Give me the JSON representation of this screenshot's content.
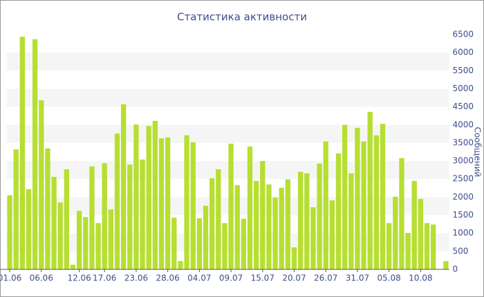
{
  "chart_data": {
    "type": "bar",
    "title": "Статистика активности",
    "y_axis_label": "Сообщений",
    "categories": [
      "01.06",
      null,
      null,
      null,
      null,
      "06.06",
      null,
      null,
      null,
      null,
      null,
      "12.06",
      null,
      null,
      null,
      "17.06",
      null,
      null,
      null,
      null,
      "23.06",
      null,
      null,
      null,
      null,
      "28.06",
      null,
      null,
      null,
      null,
      "04.07",
      null,
      null,
      null,
      null,
      "09.07",
      null,
      null,
      null,
      null,
      "15.07",
      null,
      null,
      null,
      null,
      "20.07",
      null,
      null,
      null,
      null,
      "26.07",
      null,
      null,
      null,
      null,
      "31.07",
      null,
      null,
      null,
      null,
      "05.08",
      null,
      null,
      null,
      null,
      "10.08",
      null,
      null,
      null,
      null
    ],
    "values": [
      2050,
      3320,
      6440,
      2220,
      6370,
      4680,
      3350,
      2560,
      1850,
      2770,
      130,
      1620,
      1450,
      2850,
      1280,
      2940,
      1660,
      3760,
      4570,
      2900,
      4010,
      3040,
      3970,
      4110,
      3630,
      3650,
      1430,
      230,
      3710,
      3520,
      1415,
      1760,
      2520,
      2770,
      1280,
      3480,
      2330,
      1400,
      3400,
      2450,
      3000,
      2350,
      1990,
      2260,
      2490,
      610,
      2700,
      2660,
      1720,
      2930,
      3540,
      1910,
      3210,
      4000,
      2660,
      3920,
      3540,
      4360,
      3710,
      4030,
      1280,
      2010,
      3080,
      1010,
      2450,
      1950,
      1280,
      1240,
      0,
      230
    ],
    "color": "#b6df31",
    "band_color": "#f5f5f5",
    "ylim": [
      0,
      6500
    ],
    "yticks": [
      0,
      500,
      1000,
      1500,
      2000,
      2500,
      3000,
      3500,
      4000,
      4500,
      5000,
      5500,
      6000,
      6500
    ],
    "y_axis_side": "right",
    "grid": true
  }
}
